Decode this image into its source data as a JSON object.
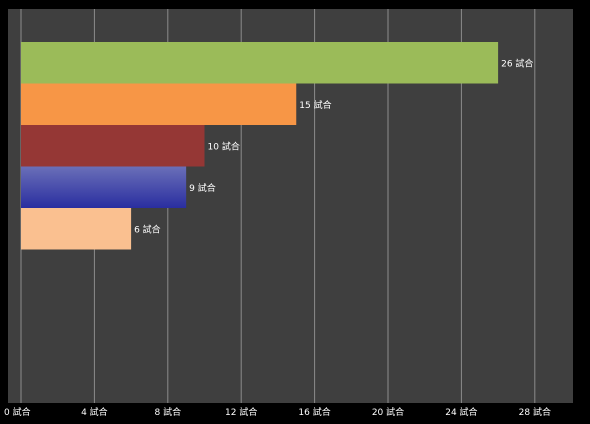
{
  "chart_data": {
    "type": "bar",
    "orientation": "horizontal",
    "categories": [
      "",
      "",
      "",
      "",
      ""
    ],
    "values": [
      26,
      15,
      10,
      9,
      6
    ],
    "value_labels": [
      "26 試合",
      "15 試合",
      "10 試合",
      "9 試合",
      "6 試合"
    ],
    "bar_colors": [
      "#9bbb59",
      "#f79646",
      "#953735",
      "#4b4fb0",
      "#fac090"
    ],
    "xlim": [
      0,
      30
    ],
    "xticks": [
      0,
      4,
      8,
      12,
      16,
      20,
      24,
      28
    ],
    "xtick_labels": [
      "0 試合",
      "4 試合",
      "8 試合",
      "12 試合",
      "16 試合",
      "20 試合",
      "24 試合",
      "28 試合"
    ],
    "title": "",
    "xlabel": "",
    "ylabel": "",
    "grid": true,
    "legend": "none",
    "background": "#3f3f3f"
  }
}
